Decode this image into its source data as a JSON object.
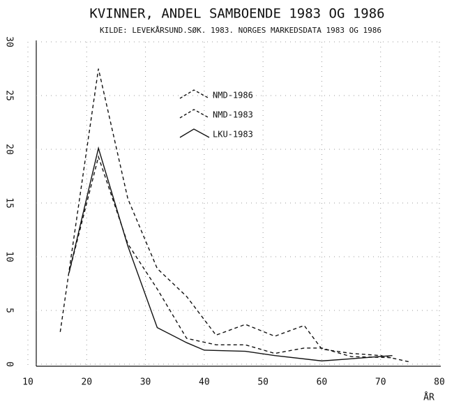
{
  "chart_data": {
    "type": "line",
    "title": "KVINNER, ANDEL SAMBOENDE 1983 OG 1986",
    "subtitle": "KILDE: LEVEKÅRSUND.SØK. 1983. NORGES MARKEDSDATA 1983 OG 1986",
    "xlabel": "ÅR",
    "xlim": [
      10,
      80
    ],
    "xticks": [
      10,
      20,
      30,
      40,
      50,
      60,
      70,
      80
    ],
    "ylim": [
      0,
      30
    ],
    "yticks": [
      0,
      5,
      10,
      15,
      20,
      25,
      30
    ],
    "grid": true,
    "legend": "upper center",
    "series": [
      {
        "name": "NMD-1986",
        "color": "#111111",
        "dash": true,
        "x": [
          15.5,
          22,
          27,
          32,
          37,
          42,
          47,
          52,
          57,
          60,
          65,
          70,
          75
        ],
        "values": [
          3.0,
          27.5,
          15.4,
          8.9,
          6.3,
          2.7,
          3.7,
          2.6,
          3.6,
          1.4,
          1.0,
          0.8,
          0.2
        ]
      },
      {
        "name": "NMD-1983",
        "color": "#111111",
        "dash": true,
        "x": [
          17,
          22,
          27,
          32,
          37,
          42,
          47,
          52,
          57,
          60,
          65,
          72
        ],
        "values": [
          8.5,
          19.3,
          11.2,
          7.0,
          2.4,
          1.8,
          1.8,
          1.0,
          1.5,
          1.5,
          0.7,
          0.6
        ]
      },
      {
        "name": "LKU-1983",
        "color": "#111111",
        "dash": false,
        "x": [
          17,
          22,
          27,
          32,
          37,
          40,
          47,
          52,
          60,
          65,
          72
        ],
        "values": [
          8.5,
          20.1,
          11.0,
          3.4,
          2.0,
          1.3,
          1.2,
          0.8,
          0.3,
          0.5,
          0.8
        ]
      }
    ]
  }
}
